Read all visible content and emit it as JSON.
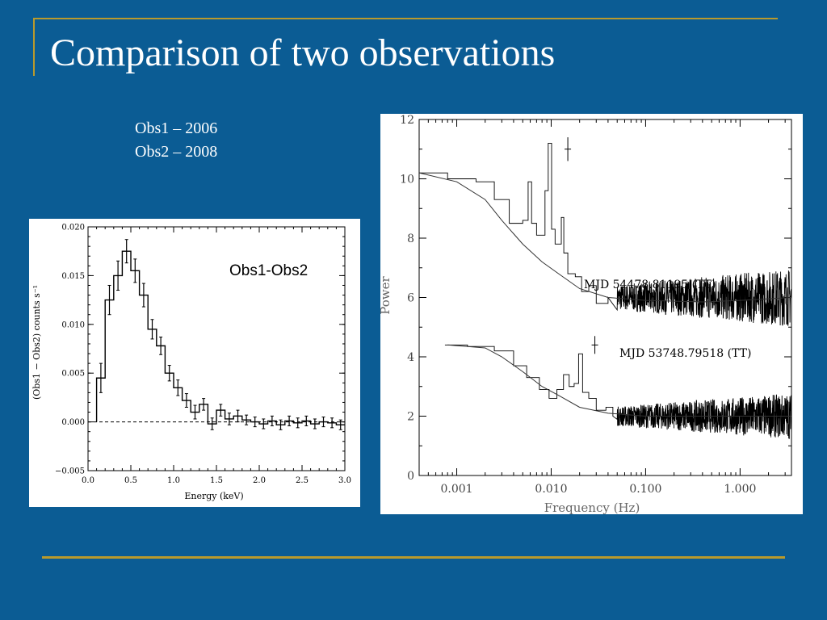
{
  "slide": {
    "title": "Comparison of two observations",
    "notes": [
      "Obs1 – 2006",
      "Obs2 – 2008"
    ]
  },
  "colors": {
    "background": "#0b5c94",
    "rule": "#b99a2c",
    "text": "#ffffff"
  },
  "chart_data": [
    {
      "type": "line",
      "subtype": "step-histogram-with-errorbars",
      "annotation": "Obs1-Obs2",
      "xlabel": "Energy (keV)",
      "ylabel": "(Obs1 − Obs2) counts s⁻¹",
      "xlim": [
        0,
        3.0
      ],
      "ylim": [
        -0.005,
        0.02
      ],
      "xticks": [
        "0.0",
        "0.5",
        "1.0",
        "1.5",
        "2.0",
        "2.5",
        "3.0"
      ],
      "yticks": [
        "−0.005",
        "0.000",
        "0.005",
        "0.010",
        "0.015",
        "0.020"
      ],
      "x_tick_values": [
        0,
        0.5,
        1.0,
        1.5,
        2.0,
        2.5,
        3.0
      ],
      "y_tick_values": [
        -0.005,
        0,
        0.005,
        0.01,
        0.015,
        0.02
      ],
      "zero_line": "dashed",
      "x": [
        0.15,
        0.25,
        0.35,
        0.45,
        0.55,
        0.65,
        0.75,
        0.85,
        0.95,
        1.05,
        1.15,
        1.25,
        1.35,
        1.45,
        1.55,
        1.65,
        1.75,
        1.85,
        1.95,
        2.05,
        2.15,
        2.25,
        2.35,
        2.45,
        2.55,
        2.65,
        2.75,
        2.85,
        2.95
      ],
      "bin_edges": [
        0.1,
        0.2,
        0.3,
        0.4,
        0.5,
        0.6,
        0.7,
        0.8,
        0.9,
        1.0,
        1.1,
        1.2,
        1.3,
        1.4,
        1.5,
        1.6,
        1.7,
        1.8,
        1.9,
        2.0,
        2.1,
        2.2,
        2.3,
        2.4,
        2.5,
        2.6,
        2.7,
        2.8,
        2.9,
        3.0
      ],
      "y": [
        0.0045,
        0.0125,
        0.015,
        0.0175,
        0.0155,
        0.013,
        0.0095,
        0.0078,
        0.005,
        0.0035,
        0.0022,
        0.001,
        0.0018,
        -0.0002,
        0.0012,
        0.0003,
        0.0006,
        0.0002,
        0.0,
        -0.0002,
        0.0001,
        -0.0003,
        0.0001,
        -0.0001,
        0.0001,
        -0.0002,
        0.0,
        -0.0001,
        -0.0003
      ],
      "yerr": [
        0.0015,
        0.0015,
        0.0015,
        0.0012,
        0.0012,
        0.0012,
        0.001,
        0.0009,
        0.0008,
        0.0008,
        0.0007,
        0.0007,
        0.0006,
        0.0006,
        0.0006,
        0.0006,
        0.0006,
        0.0005,
        0.0005,
        0.0005,
        0.0005,
        0.0005,
        0.0005,
        0.0005,
        0.0005,
        0.0005,
        0.0005,
        0.0005,
        0.0005
      ]
    },
    {
      "type": "line",
      "subtype": "power-density-spectrum",
      "xscale": "log",
      "xlabel": "Frequency (Hz)",
      "ylabel": "Power",
      "xlim": [
        0.0004,
        3.5
      ],
      "ylim": [
        0,
        12
      ],
      "xticks": [
        "0.001",
        "0.010",
        "0.100",
        "1.000"
      ],
      "x_tick_values": [
        0.001,
        0.01,
        0.1,
        1.0
      ],
      "yticks": [
        "0",
        "2",
        "4",
        "6",
        "8",
        "10",
        "12"
      ],
      "y_tick_values": [
        0,
        2,
        4,
        6,
        8,
        10,
        12
      ],
      "series": [
        {
          "name": "MJD 54478.81195 (TT)",
          "errorbar": {
            "x": 0.015,
            "y": 11.0,
            "yerr": 0.4
          },
          "steps": [
            [
              0.0004,
              10.2
            ],
            [
              0.0008,
              10.0
            ],
            [
              0.0016,
              9.9
            ],
            [
              0.0025,
              9.3
            ],
            [
              0.0036,
              8.5
            ],
            [
              0.005,
              8.6
            ],
            [
              0.0057,
              9.9
            ],
            [
              0.0062,
              8.5
            ],
            [
              0.007,
              8.1
            ],
            [
              0.0086,
              9.6
            ],
            [
              0.0093,
              11.2
            ],
            [
              0.0101,
              8.3
            ],
            [
              0.011,
              7.8
            ],
            [
              0.0128,
              8.7
            ],
            [
              0.0136,
              7.5
            ],
            [
              0.015,
              6.8
            ],
            [
              0.018,
              6.7
            ],
            [
              0.021,
              6.2
            ],
            [
              0.025,
              6.4
            ],
            [
              0.03,
              5.8
            ],
            [
              0.04,
              6.0
            ]
          ],
          "noise": {
            "from": 0.05,
            "to": 3.5,
            "mean": 6.0,
            "amplitude": 0.7
          },
          "model_curve": [
            [
              0.0004,
              10.2
            ],
            [
              0.001,
              9.9
            ],
            [
              0.002,
              9.3
            ],
            [
              0.003,
              8.6
            ],
            [
              0.005,
              7.8
            ],
            [
              0.008,
              7.2
            ],
            [
              0.012,
              6.8
            ],
            [
              0.02,
              6.3
            ],
            [
              0.04,
              6.0
            ],
            [
              0.1,
              5.9
            ],
            [
              0.4,
              5.85
            ],
            [
              1.0,
              5.9
            ],
            [
              3.5,
              6.0
            ]
          ]
        },
        {
          "name": "MJD 53748.79518 (TT)",
          "errorbar": {
            "x": 0.029,
            "y": 4.4,
            "yerr": 0.3
          },
          "steps": [
            [
              0.00075,
              4.4
            ],
            [
              0.0013,
              4.35
            ],
            [
              0.0025,
              4.2
            ],
            [
              0.004,
              3.7
            ],
            [
              0.0055,
              3.3
            ],
            [
              0.0075,
              2.9
            ],
            [
              0.0095,
              2.6
            ],
            [
              0.0115,
              2.9
            ],
            [
              0.0135,
              3.4
            ],
            [
              0.0155,
              3.0
            ],
            [
              0.0175,
              3.1
            ],
            [
              0.0195,
              4.1
            ],
            [
              0.0215,
              2.8
            ],
            [
              0.025,
              2.6
            ],
            [
              0.03,
              2.2
            ],
            [
              0.038,
              2.3
            ],
            [
              0.045,
              2.0
            ]
          ],
          "noise": {
            "from": 0.05,
            "to": 3.5,
            "mean": 2.0,
            "amplitude": 0.55
          },
          "model_curve": [
            [
              0.0008,
              4.4
            ],
            [
              0.002,
              4.3
            ],
            [
              0.003,
              4.0
            ],
            [
              0.005,
              3.5
            ],
            [
              0.008,
              3.0
            ],
            [
              0.012,
              2.7
            ],
            [
              0.02,
              2.3
            ],
            [
              0.04,
              2.1
            ],
            [
              0.1,
              2.0
            ],
            [
              1.0,
              2.0
            ],
            [
              3.5,
              2.0
            ]
          ]
        }
      ]
    }
  ]
}
